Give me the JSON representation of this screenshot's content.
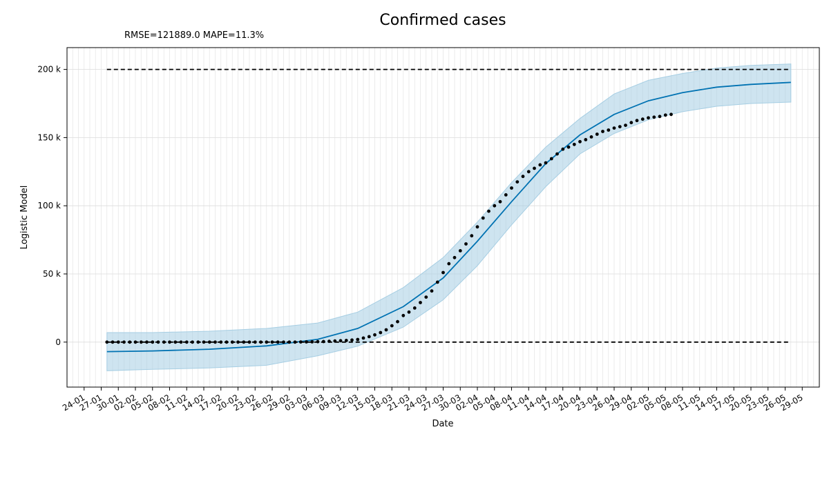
{
  "chart_data": {
    "type": "line",
    "title": "Confirmed cases",
    "annotation": "RMSE=121889.0 MAPE=11.3%",
    "xlabel": "Date",
    "ylabel": "Logistic Model",
    "x_range": [
      "2020-01-21",
      "2020-06-01"
    ],
    "ylim": [
      -33000,
      216000
    ],
    "y_ticks": [
      0,
      50000,
      100000,
      150000,
      200000
    ],
    "y_tick_labels": [
      "0",
      "50 k",
      "100 k",
      "150 k",
      "200 k"
    ],
    "x_ticks": [
      "2020-01-24",
      "2020-01-27",
      "2020-01-30",
      "2020-02-02",
      "2020-02-05",
      "2020-02-08",
      "2020-02-11",
      "2020-02-14",
      "2020-02-17",
      "2020-02-20",
      "2020-02-23",
      "2020-02-26",
      "2020-02-29",
      "2020-03-03",
      "2020-03-06",
      "2020-03-09",
      "2020-03-12",
      "2020-03-15",
      "2020-03-18",
      "2020-03-21",
      "2020-03-24",
      "2020-03-27",
      "2020-03-30",
      "2020-04-02",
      "2020-04-05",
      "2020-04-08",
      "2020-04-11",
      "2020-04-14",
      "2020-04-17",
      "2020-04-20",
      "2020-04-23",
      "2020-04-26",
      "2020-04-29",
      "2020-05-02",
      "2020-05-05",
      "2020-05-08",
      "2020-05-11",
      "2020-05-14",
      "2020-05-17",
      "2020-05-20",
      "2020-05-23",
      "2020-05-26",
      "2020-05-29"
    ],
    "x_tick_labels": [
      "24-01",
      "27-01",
      "30-01",
      "02-02",
      "05-02",
      "08-02",
      "11-02",
      "14-02",
      "17-02",
      "20-02",
      "23-02",
      "26-02",
      "29-02",
      "03-03",
      "06-03",
      "09-03",
      "12-03",
      "15-03",
      "18-03",
      "21-03",
      "24-03",
      "27-03",
      "30-03",
      "02-04",
      "05-04",
      "08-04",
      "11-04",
      "14-04",
      "17-04",
      "20-04",
      "23-04",
      "26-04",
      "29-04",
      "02-05",
      "05-05",
      "08-05",
      "11-05",
      "14-05",
      "17-05",
      "20-05",
      "23-05",
      "26-05",
      "29-05"
    ],
    "grid": true,
    "series": [
      {
        "kind": "line",
        "color": "#0072b2",
        "x": [
          "2020-01-28",
          "2020-02-05",
          "2020-02-15",
          "2020-02-25",
          "2020-03-05",
          "2020-03-12",
          "2020-03-20",
          "2020-03-27",
          "2020-04-02",
          "2020-04-08",
          "2020-04-14",
          "2020-04-20",
          "2020-04-26",
          "2020-05-02",
          "2020-05-08",
          "2020-05-14",
          "2020-05-20",
          "2020-05-27"
        ],
        "values": [
          -7000,
          -6500,
          -5200,
          -2800,
          2000,
          10000,
          26000,
          47000,
          74000,
          103000,
          131000,
          152000,
          167000,
          177000,
          183000,
          187000,
          189000,
          190500
        ]
      },
      {
        "kind": "band",
        "color": "#a6cee3",
        "x": [
          "2020-01-28",
          "2020-02-05",
          "2020-02-15",
          "2020-02-25",
          "2020-03-05",
          "2020-03-12",
          "2020-03-20",
          "2020-03-27",
          "2020-04-02",
          "2020-04-08",
          "2020-04-14",
          "2020-04-20",
          "2020-04-26",
          "2020-05-02",
          "2020-05-08",
          "2020-05-14",
          "2020-05-20",
          "2020-05-27"
        ],
        "lower": [
          -21000,
          -20000,
          -19000,
          -17000,
          -10000,
          -3000,
          11000,
          31000,
          56000,
          86000,
          114000,
          138000,
          153000,
          163000,
          169000,
          173000,
          175000,
          176000
        ],
        "upper": [
          7000,
          7000,
          8000,
          10000,
          14000,
          22000,
          40000,
          62000,
          88000,
          117000,
          143000,
          164000,
          182000,
          192000,
          197000,
          201000,
          203000,
          204000
        ]
      },
      {
        "kind": "scatter",
        "color": "#000000",
        "x": [
          "2020-01-28",
          "2020-01-29",
          "2020-01-30",
          "2020-01-31",
          "2020-02-01",
          "2020-02-02",
          "2020-02-03",
          "2020-02-04",
          "2020-02-05",
          "2020-02-06",
          "2020-02-07",
          "2020-02-08",
          "2020-02-09",
          "2020-02-10",
          "2020-02-11",
          "2020-02-12",
          "2020-02-13",
          "2020-02-14",
          "2020-02-15",
          "2020-02-16",
          "2020-02-17",
          "2020-02-18",
          "2020-02-19",
          "2020-02-20",
          "2020-02-21",
          "2020-02-22",
          "2020-02-23",
          "2020-02-24",
          "2020-02-25",
          "2020-02-26",
          "2020-02-27",
          "2020-02-28",
          "2020-02-29",
          "2020-03-01",
          "2020-03-02",
          "2020-03-03",
          "2020-03-04",
          "2020-03-05",
          "2020-03-06",
          "2020-03-07",
          "2020-03-08",
          "2020-03-09",
          "2020-03-10",
          "2020-03-11",
          "2020-03-12",
          "2020-03-13",
          "2020-03-14",
          "2020-03-15",
          "2020-03-16",
          "2020-03-17",
          "2020-03-18",
          "2020-03-19",
          "2020-03-20",
          "2020-03-21",
          "2020-03-22",
          "2020-03-23",
          "2020-03-24",
          "2020-03-25",
          "2020-03-26",
          "2020-03-27",
          "2020-03-28",
          "2020-03-29",
          "2020-03-30",
          "2020-03-31",
          "2020-04-01",
          "2020-04-02",
          "2020-04-03",
          "2020-04-04",
          "2020-04-05",
          "2020-04-06",
          "2020-04-07",
          "2020-04-08",
          "2020-04-09",
          "2020-04-10",
          "2020-04-11",
          "2020-04-12",
          "2020-04-13",
          "2020-04-14",
          "2020-04-15",
          "2020-04-16",
          "2020-04-17",
          "2020-04-18",
          "2020-04-19",
          "2020-04-20",
          "2020-04-21",
          "2020-04-22",
          "2020-04-23",
          "2020-04-24",
          "2020-04-25",
          "2020-04-26",
          "2020-04-27",
          "2020-04-28",
          "2020-04-29",
          "2020-04-30",
          "2020-05-01",
          "2020-05-02",
          "2020-05-03",
          "2020-05-04",
          "2020-05-05",
          "2020-05-06"
        ],
        "values": [
          0,
          0,
          0,
          0,
          0,
          0,
          0,
          0,
          0,
          0,
          0,
          0,
          0,
          0,
          0,
          0,
          0,
          0,
          0,
          0,
          0,
          0,
          0,
          0,
          0,
          0,
          0,
          0,
          0,
          0,
          0,
          0,
          0,
          0,
          100,
          150,
          200,
          300,
          400,
          600,
          800,
          1000,
          1200,
          1500,
          1900,
          3000,
          4000,
          5300,
          7000,
          9000,
          12000,
          15000,
          19500,
          22000,
          25000,
          29000,
          33000,
          37500,
          44000,
          51000,
          57500,
          62000,
          67000,
          72000,
          78000,
          84500,
          91000,
          96000,
          100000,
          103000,
          108000,
          113000,
          117500,
          121500,
          125000,
          127500,
          130000,
          131500,
          134500,
          138000,
          141500,
          143000,
          145000,
          147000,
          148500,
          150500,
          152500,
          154500,
          155500,
          157000,
          158000,
          159000,
          161000,
          162500,
          163500,
          164500,
          165000,
          165500,
          166500,
          167000
        ]
      },
      {
        "kind": "dashed",
        "color": "#000000",
        "x": [
          "2020-01-28",
          "2020-05-27"
        ],
        "values": [
          200000,
          200000
        ]
      },
      {
        "kind": "dashed",
        "color": "#000000",
        "x": [
          "2020-01-28",
          "2020-05-27"
        ],
        "values": [
          0,
          0
        ]
      }
    ]
  }
}
